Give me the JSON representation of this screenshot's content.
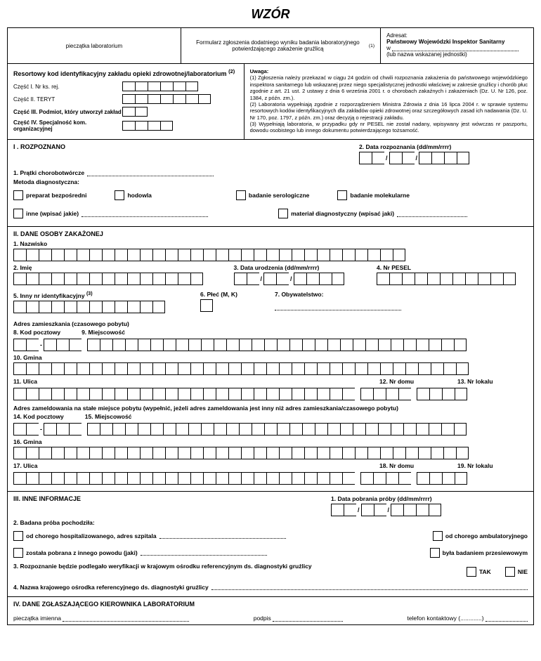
{
  "title": "WZÓR",
  "header": {
    "stamp": "pieczątka laboratorium",
    "form_desc": "Formularz zgłoszenia dodatniego wyniku badania laboratoryjnego potwierdzającego zakażenie gruźlicą",
    "addressee_label": "Adresat:",
    "addressee_body": "Państwowy Wojewódzki Inspektor Sanitarny",
    "addressee_w": "w",
    "addressee_note": "(lub nazwa wskazanej jednostki)"
  },
  "kod": {
    "title": "Resortowy kod identyfikacyjny zakładu opieki zdrowotnej/laboratorium",
    "sup": "(2)",
    "p1": "Część I. Nr ks. rej.",
    "p2": "Część II. TERYT",
    "p3": "Część III. Podmiot, który utworzył zakład",
    "p4": "Część IV. Specjalność kom. organizacyjnej"
  },
  "uwaga": {
    "head": "Uwaga:",
    "n1": "(1) Zgłoszenia należy przekazać w ciągu 24 godzin od chwili rozpoznania zakażenia do państwowego wojewódzkiego inspektora sanitarnego lub wskazanej przez niego specjalistycznej jednostki właściwej w zakresie gruźlicy i chorób płuc zgodnie z art. 21 ust. 2 ustawy z dnia 6 września 2001 r. o chorobach zakaźnych i zakażeniach (Dz. U. Nr 126, poz. 1384, z późn. zm.).",
    "n2": "(2) Laboratoria wypełniają zgodnie z rozporządzeniem Ministra Zdrowia z dnia 16 lipca 2004 r. w sprawie systemu resortowych kodów identyfikacyjnych dla zakładów opieki zdrowotnej oraz szczegółowych zasad ich nadawania (Dz. U. Nr 170, poz. 1797, z późn. zm.) oraz decyzją o rejestracji zakładu.",
    "n3": "(3) Wypełniają laboratoria, w przypadku gdy nr PESEL nie został nadany, wpisywany jest wówczas nr paszportu, dowodu osobistego lub innego dokumentu potwierdzającego tożsamość."
  },
  "s1": {
    "head": "I . ROZPOZNANO",
    "pratki": "1. Prątki chorobotwórcze",
    "data_label": "2. Data rozpoznania (dd/mm/rrrr)",
    "metoda": "Metoda diagnostyczna:",
    "m1": "preparat bezpośredni",
    "m2": "hodowla",
    "m3": "badanie serologiczne",
    "m4": "badanie molekularne",
    "m5": "inne (wpisać jakie)",
    "m6": "materiał diagnostyczny (wpisać jaki)"
  },
  "s2": {
    "head": "II. DANE OSOBY ZAKAŻONEJ",
    "nazwisko": "1. Nazwisko",
    "imie": "2. Imię",
    "data_ur": "3. Data urodzenia (dd/mm/rrrr)",
    "pesel": "4. Nr PESEL",
    "inny_id": "5. Inny nr identyfikacyjny",
    "sup3": "(3)",
    "plec": "6. Płeć (M, K)",
    "obyw": "7. Obywatelstwo:",
    "adres_zam": "Adres zamieszkania (czasowego pobytu)",
    "kod_p": "8. Kod pocztowy",
    "miejsc": "9. Miejscowość",
    "gmina": "10. Gmina",
    "ulica": "11. Ulica",
    "nr_domu": "12. Nr domu",
    "nr_lok": "13. Nr lokalu",
    "adres_zameld": "Adres zameldowania na stałe miejsce pobytu (wypełnić, jeżeli adres zameldowania jest inny niż adres zamieszkania/czasowego pobytu)",
    "kod_p2": "14. Kod pocztowy",
    "miejsc2": "15. Miejscowość",
    "gmina2": "16. Gmina",
    "ulica2": "17. Ulica",
    "nr_domu2": "18. Nr domu",
    "nr_lok2": "19. Nr lokalu"
  },
  "s3": {
    "head": "III. INNE INFORMACJE",
    "data_pob": "1. Data pobrania próby (dd/mm/rrrr)",
    "proba": "2. Badana próba pochodziła:",
    "p1": "od chorego hospitalizowanego, adres szpitala",
    "p2": "od chorego ambulatoryjnego",
    "p3": "została pobrana z innego powodu (jaki)",
    "p4": "była badaniem przesiewowym",
    "q3": "3. Rozpoznanie będzie podlegało weryfikacji w krajowym ośrodku referencyjnym ds. diagnostyki gruźlicy",
    "tak": "TAK",
    "nie": "NIE",
    "q4": "4. Nazwa krajowego ośrodka referencyjnego ds. diagnostyki gruźlicy"
  },
  "s4": {
    "head": "IV. DANE ZGŁASZAJĄCEGO KIEROWNIKA LABORATORIUM",
    "stamp": "pieczątka imienna",
    "podpis": "podpis",
    "tel": "telefon kontaktowy",
    "paren": "(.............)"
  }
}
